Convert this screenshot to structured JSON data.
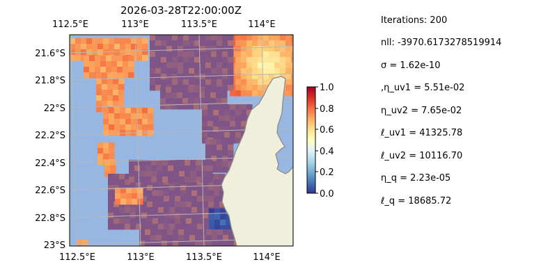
{
  "map": {
    "title": "2026-03-28T22:00:00Z",
    "lon_labels_top": [
      "112.5°E",
      "113°E",
      "113.5°E",
      "114°E"
    ],
    "lon_labels_bottom": [
      "112.5°E",
      "113°E",
      "113.5°E",
      "114°E"
    ],
    "lat_labels": [
      "21.6°S",
      "21.8°S",
      "22°S",
      "22.2°S",
      "22.4°S",
      "22.6°S",
      "22.8°S",
      "23°S"
    ],
    "extent": {
      "lon": [
        112.5,
        114.2
      ],
      "lat": [
        -23.0,
        -21.45
      ]
    },
    "colors": {
      "ocean": "#97b6e1",
      "land": "#efefdb",
      "coast": "#8c8c8c",
      "grid": "#b8b8b8"
    },
    "field": "masked scalar field, values 0–1, colormap RdYlBu_r"
  },
  "colorbar": {
    "ticks": [
      "0.0",
      "0.2",
      "0.4",
      "0.6",
      "0.8",
      "1.0"
    ],
    "range": [
      0,
      1
    ],
    "colormap": "RdYlBu_r"
  },
  "params": [
    "Iterations: 200",
    "nll: -3970.6173278519914",
    "σ = 1.62e-10",
    ",η_uv1 = 5.51e-02",
    "η_uv2 = 7.65e-02",
    "ℓ_uv1 = 41325.78",
    "ℓ_uv2 = 10116.70",
    "η_q = 2.23e-05",
    "ℓ_q = 18685.72"
  ]
}
